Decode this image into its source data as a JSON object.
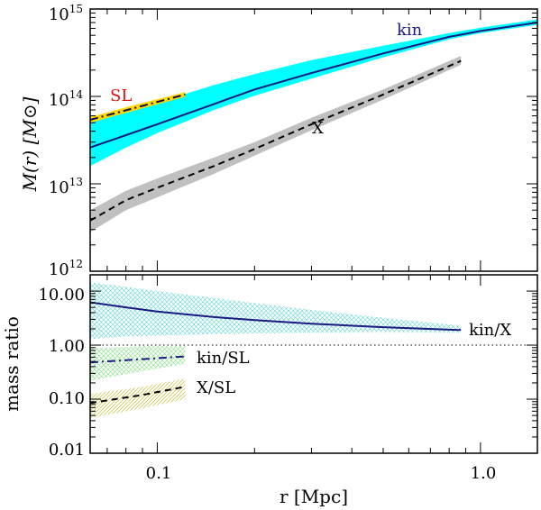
{
  "chart_data": [
    {
      "panel": "top",
      "type": "line",
      "xscale": "log",
      "yscale": "log",
      "xlim": [
        0.062,
        1.5
      ],
      "ylim": [
        1000000000000.0,
        1000000000000000.0
      ],
      "ylabel": "M(r) [M⊙]",
      "ytick_labels": [
        {
          "base": "10",
          "exp": "12",
          "value": 1000000000000.0
        },
        {
          "base": "10",
          "exp": "13",
          "value": 10000000000000.0
        },
        {
          "base": "10",
          "exp": "14",
          "value": 100000000000000.0
        },
        {
          "base": "10",
          "exp": "15",
          "value": 1000000000000000.0
        }
      ],
      "series": [
        {
          "name": "kin",
          "label": "kin",
          "color": "#1a1a80",
          "band_color": "#00ffff",
          "linestyle": "solid",
          "x": [
            0.062,
            0.08,
            0.1,
            0.15,
            0.2,
            0.3,
            0.5,
            0.8,
            1.0,
            1.5
          ],
          "y": [
            26000000000000.0,
            36000000000000.0,
            48000000000000.0,
            82000000000000.0,
            120000000000000.0,
            185000000000000.0,
            310000000000000.0,
            480000000000000.0,
            560000000000000.0,
            700000000000000.0
          ],
          "lower": [
            16000000000000.0,
            26000000000000.0,
            38000000000000.0,
            70000000000000.0,
            102000000000000.0,
            160000000000000.0,
            280000000000000.0,
            450000000000000.0,
            530000000000000.0,
            660000000000000.0
          ],
          "upper": [
            55000000000000.0,
            70000000000000.0,
            85000000000000.0,
            135000000000000.0,
            180000000000000.0,
            260000000000000.0,
            380000000000000.0,
            530000000000000.0,
            610000000000000.0,
            760000000000000.0
          ]
        },
        {
          "name": "X",
          "label": "X",
          "color": "#000000",
          "band_color": "#c0c0c0",
          "linestyle": "dashed",
          "x": [
            0.062,
            0.08,
            0.1,
            0.15,
            0.2,
            0.3,
            0.5,
            0.87
          ],
          "y": [
            3800000000000.0,
            6500000000000.0,
            9000000000000.0,
            16000000000000.0,
            25000000000000.0,
            48000000000000.0,
            105000000000000.0,
            255000000000000.0
          ],
          "lower": [
            2800000000000.0,
            5000000000000.0,
            7000000000000.0,
            13000000000000.0,
            21000000000000.0,
            41000000000000.0,
            92000000000000.0,
            230000000000000.0
          ],
          "upper": [
            5000000000000.0,
            8300000000000.0,
            11500000000000.0,
            20000000000000.0,
            30000000000000.0,
            57000000000000.0,
            120000000000000.0,
            290000000000000.0
          ]
        },
        {
          "name": "SL",
          "label": "SL",
          "color": "#0a0a50",
          "band_color": "#ffd700",
          "text_color": "#e01010",
          "linestyle": "dashdot",
          "x": [
            0.062,
            0.09,
            0.122
          ],
          "y": [
            54000000000000.0,
            78000000000000.0,
            105000000000000.0
          ],
          "lower": [
            50000000000000.0,
            73000000000000.0,
            99000000000000.0
          ],
          "upper": [
            58000000000000.0,
            84000000000000.0,
            112000000000000.0
          ]
        }
      ]
    },
    {
      "panel": "bottom",
      "type": "line",
      "xscale": "log",
      "yscale": "log",
      "xlim": [
        0.062,
        1.5
      ],
      "ylim": [
        0.01,
        20
      ],
      "xlabel": "r [Mpc]",
      "ylabel": "mass ratio",
      "ytick_labels": [
        "0.01",
        "0.10",
        "1.00",
        "10.00"
      ],
      "ytick_values": [
        0.01,
        0.1,
        1,
        10
      ],
      "xtick_labels": [
        "0.1",
        "1.0"
      ],
      "xtick_values": [
        0.1,
        1.0
      ],
      "reference_line": {
        "y": 1.0,
        "style": "dotted"
      },
      "series": [
        {
          "name": "kin/X",
          "label": "kin/X",
          "color": "#1a1a80",
          "band_color": "#5ad6d6",
          "linestyle": "solid",
          "x": [
            0.062,
            0.08,
            0.1,
            0.15,
            0.2,
            0.3,
            0.5,
            0.87
          ],
          "y": [
            6.2,
            5.0,
            4.2,
            3.3,
            2.9,
            2.5,
            2.15,
            1.9
          ],
          "lower": [
            1.3,
            1.45,
            1.5,
            1.6,
            1.65,
            1.7,
            1.75,
            1.7
          ],
          "upper": [
            14.5,
            12.0,
            10.0,
            7.5,
            6.0,
            4.5,
            3.2,
            2.3
          ]
        },
        {
          "name": "kin/SL",
          "label": "kin/SL",
          "color": "#1a1a80",
          "band_color": "#7ee07e",
          "linestyle": "dashdot",
          "x": [
            0.062,
            0.09,
            0.122
          ],
          "y": [
            0.48,
            0.55,
            0.62
          ],
          "lower": [
            0.22,
            0.33,
            0.45
          ],
          "upper": [
            0.88,
            0.95,
            0.96
          ]
        },
        {
          "name": "X/SL",
          "label": "X/SL",
          "color": "#000000",
          "band_color": "#c8c040",
          "linestyle": "dashed",
          "x": [
            0.062,
            0.09,
            0.122
          ],
          "y": [
            0.085,
            0.12,
            0.17
          ],
          "lower": [
            0.045,
            0.068,
            0.1
          ],
          "upper": [
            0.125,
            0.17,
            0.24
          ]
        }
      ]
    }
  ]
}
